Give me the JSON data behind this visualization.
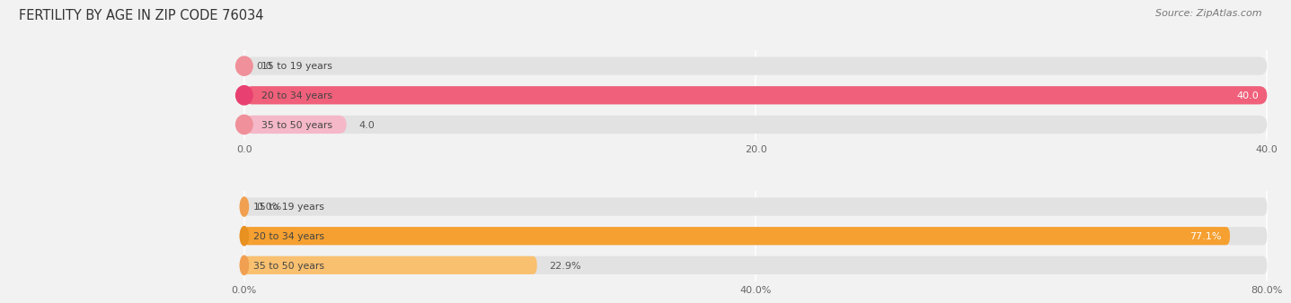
{
  "title": "FERTILITY BY AGE IN ZIP CODE 76034",
  "source": "Source: ZipAtlas.com",
  "background_color": "#f2f2f2",
  "top_chart": {
    "categories": [
      "15 to 19 years",
      "20 to 34 years",
      "35 to 50 years"
    ],
    "values": [
      0.0,
      40.0,
      4.0
    ],
    "max_value": 40.0,
    "bar_colors": [
      "#f5b8c8",
      "#f0607a",
      "#f5b8c8"
    ],
    "bar_bg_color": "#e2e2e2",
    "circle_colors": [
      "#f0909a",
      "#e84070",
      "#f0909a"
    ],
    "label_colors_inside": [
      "#ffffff",
      "#ffffff",
      "#ffffff"
    ],
    "value_colors": [
      "#666666",
      "#ffffff",
      "#666666"
    ],
    "x_ticks": [
      0.0,
      20.0,
      40.0
    ],
    "x_tick_labels": [
      "0.0",
      "20.0",
      "40.0"
    ],
    "has_percent": false
  },
  "bottom_chart": {
    "categories": [
      "15 to 19 years",
      "20 to 34 years",
      "35 to 50 years"
    ],
    "values": [
      0.0,
      77.1,
      22.9
    ],
    "max_value": 80.0,
    "bar_colors": [
      "#f9d3a0",
      "#f5a030",
      "#f9c070"
    ],
    "bar_bg_color": "#e2e2e2",
    "circle_colors": [
      "#f0a050",
      "#e89020",
      "#f0a050"
    ],
    "label_colors_inside": [
      "#ffffff",
      "#ffffff",
      "#ffffff"
    ],
    "value_colors": [
      "#666666",
      "#ffffff",
      "#666666"
    ],
    "x_ticks": [
      0.0,
      40.0,
      80.0
    ],
    "x_tick_labels": [
      "0.0%",
      "40.0%",
      "80.0%"
    ],
    "has_percent": true
  }
}
